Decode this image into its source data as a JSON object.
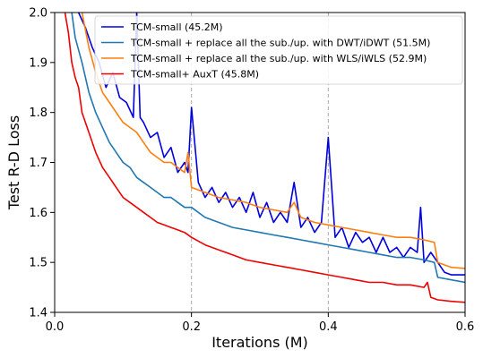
{
  "chart_data": {
    "type": "line",
    "title": "",
    "xlabel": "Iterations (M)",
    "ylabel": "Test R-D Loss",
    "xlim": [
      0.0,
      0.6
    ],
    "ylim": [
      1.4,
      2.0
    ],
    "x_ticks": [
      "0.0",
      "0.2",
      "0.4",
      "0.6"
    ],
    "y_ticks": [
      "1.4",
      "1.5",
      "1.6",
      "1.7",
      "1.8",
      "1.9",
      "2.0"
    ],
    "vertical_reference_lines": [
      0.2,
      0.4
    ],
    "grid": false,
    "legend_position": "top-right",
    "series": [
      {
        "name": "TCM-small (45.2M)",
        "color": "#0000dd",
        "x": [
          0.035,
          0.045,
          0.055,
          0.065,
          0.075,
          0.085,
          0.095,
          0.105,
          0.115,
          0.12,
          0.125,
          0.13,
          0.14,
          0.15,
          0.16,
          0.17,
          0.18,
          0.19,
          0.195,
          0.2,
          0.21,
          0.22,
          0.23,
          0.24,
          0.25,
          0.26,
          0.27,
          0.28,
          0.29,
          0.3,
          0.31,
          0.32,
          0.33,
          0.34,
          0.35,
          0.36,
          0.37,
          0.38,
          0.39,
          0.4,
          0.41,
          0.42,
          0.43,
          0.44,
          0.45,
          0.46,
          0.47,
          0.48,
          0.49,
          0.5,
          0.51,
          0.52,
          0.53,
          0.535,
          0.54,
          0.55,
          0.56,
          0.57,
          0.58,
          0.6
        ],
        "y": [
          2.0,
          1.97,
          1.93,
          1.9,
          1.85,
          1.88,
          1.83,
          1.82,
          1.79,
          2.0,
          1.79,
          1.78,
          1.75,
          1.76,
          1.71,
          1.73,
          1.68,
          1.7,
          1.68,
          1.81,
          1.66,
          1.63,
          1.65,
          1.62,
          1.64,
          1.61,
          1.63,
          1.6,
          1.64,
          1.59,
          1.62,
          1.58,
          1.6,
          1.58,
          1.66,
          1.57,
          1.59,
          1.56,
          1.58,
          1.75,
          1.55,
          1.57,
          1.53,
          1.56,
          1.54,
          1.55,
          1.52,
          1.55,
          1.52,
          1.53,
          1.51,
          1.53,
          1.52,
          1.61,
          1.5,
          1.52,
          1.5,
          1.48,
          1.475,
          1.475
        ]
      },
      {
        "name": "TCM-small + replace all the sub./up. with DWT/iDWT (51.5M)",
        "color": "#1f77b4",
        "x": [
          0.025,
          0.03,
          0.04,
          0.05,
          0.06,
          0.07,
          0.08,
          0.09,
          0.1,
          0.11,
          0.12,
          0.13,
          0.14,
          0.15,
          0.16,
          0.17,
          0.18,
          0.19,
          0.2,
          0.22,
          0.24,
          0.26,
          0.28,
          0.3,
          0.32,
          0.34,
          0.36,
          0.38,
          0.4,
          0.42,
          0.44,
          0.46,
          0.48,
          0.5,
          0.52,
          0.54,
          0.555,
          0.56,
          0.58,
          0.6
        ],
        "y": [
          2.0,
          1.95,
          1.9,
          1.84,
          1.8,
          1.77,
          1.74,
          1.72,
          1.7,
          1.69,
          1.67,
          1.66,
          1.65,
          1.64,
          1.63,
          1.63,
          1.62,
          1.61,
          1.61,
          1.59,
          1.58,
          1.57,
          1.565,
          1.56,
          1.555,
          1.55,
          1.545,
          1.54,
          1.535,
          1.53,
          1.525,
          1.52,
          1.515,
          1.51,
          1.51,
          1.505,
          1.5,
          1.47,
          1.465,
          1.46
        ]
      },
      {
        "name": "TCM-small + replace all the sub./up. with WLS/iWLS (52.9M)",
        "color": "#ff7f0e",
        "x": [
          0.04,
          0.05,
          0.06,
          0.07,
          0.08,
          0.09,
          0.1,
          0.11,
          0.12,
          0.13,
          0.14,
          0.15,
          0.16,
          0.17,
          0.18,
          0.19,
          0.195,
          0.2,
          0.22,
          0.24,
          0.26,
          0.28,
          0.3,
          0.32,
          0.34,
          0.35,
          0.36,
          0.38,
          0.4,
          0.42,
          0.44,
          0.46,
          0.48,
          0.5,
          0.52,
          0.54,
          0.555,
          0.56,
          0.58,
          0.6
        ],
        "y": [
          2.0,
          1.93,
          1.88,
          1.84,
          1.82,
          1.8,
          1.78,
          1.77,
          1.76,
          1.74,
          1.72,
          1.71,
          1.7,
          1.7,
          1.69,
          1.68,
          1.72,
          1.65,
          1.64,
          1.63,
          1.625,
          1.62,
          1.61,
          1.605,
          1.6,
          1.62,
          1.59,
          1.58,
          1.575,
          1.57,
          1.565,
          1.56,
          1.555,
          1.55,
          1.55,
          1.545,
          1.54,
          1.5,
          1.49,
          1.488
        ]
      },
      {
        "name": "TCM-small+ AuxT (45.8M)",
        "color": "#ee0000",
        "x": [
          0.015,
          0.02,
          0.025,
          0.03,
          0.035,
          0.04,
          0.05,
          0.06,
          0.07,
          0.08,
          0.09,
          0.1,
          0.11,
          0.12,
          0.13,
          0.14,
          0.15,
          0.16,
          0.17,
          0.18,
          0.19,
          0.2,
          0.22,
          0.24,
          0.26,
          0.28,
          0.3,
          0.32,
          0.34,
          0.36,
          0.38,
          0.4,
          0.42,
          0.44,
          0.46,
          0.48,
          0.5,
          0.52,
          0.54,
          0.545,
          0.55,
          0.56,
          0.58,
          0.6
        ],
        "y": [
          2.0,
          1.96,
          1.9,
          1.87,
          1.85,
          1.8,
          1.76,
          1.72,
          1.69,
          1.67,
          1.65,
          1.63,
          1.62,
          1.61,
          1.6,
          1.59,
          1.58,
          1.575,
          1.57,
          1.565,
          1.56,
          1.55,
          1.535,
          1.525,
          1.515,
          1.505,
          1.5,
          1.495,
          1.49,
          1.485,
          1.48,
          1.475,
          1.47,
          1.465,
          1.46,
          1.46,
          1.455,
          1.455,
          1.45,
          1.46,
          1.43,
          1.425,
          1.422,
          1.42
        ]
      }
    ]
  }
}
